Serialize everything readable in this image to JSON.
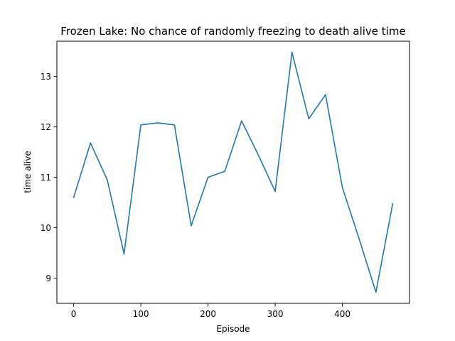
{
  "chart_data": {
    "type": "line",
    "title": "Frozen Lake: No chance of randomly freezing to death alive time",
    "xlabel": "Episode",
    "ylabel": "time alive",
    "xlim": [
      -25,
      500
    ],
    "ylim": [
      8.5,
      13.7
    ],
    "xticks": [
      0,
      100,
      200,
      300,
      400
    ],
    "yticks": [
      9,
      10,
      11,
      12,
      13
    ],
    "grid": false,
    "legend": "none",
    "series": [
      {
        "color": "#1f77b4",
        "x": [
          0,
          25,
          50,
          75,
          100,
          125,
          150,
          175,
          200,
          225,
          250,
          275,
          300,
          325,
          350,
          375,
          400,
          425,
          450,
          475
        ],
        "y": [
          10.6,
          11.68,
          10.95,
          9.48,
          12.04,
          12.08,
          12.04,
          10.04,
          11.0,
          11.12,
          12.12,
          11.44,
          10.72,
          13.48,
          12.16,
          12.64,
          10.8,
          9.78,
          8.72,
          10.48
        ]
      }
    ]
  }
}
